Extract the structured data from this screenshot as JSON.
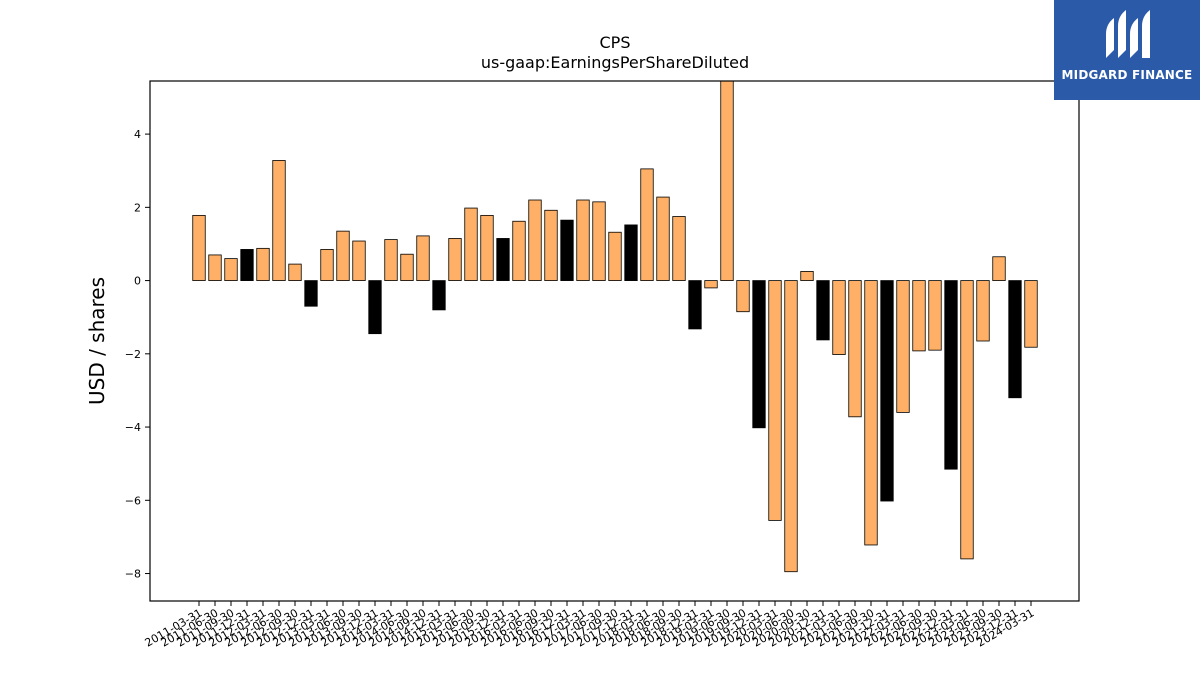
{
  "brand": {
    "name": "MIDGARD FINANCE",
    "bg_color": "#2a5aa8"
  },
  "colors": {
    "bar_positive": "#ffb066",
    "bar_highlight": "#000000",
    "axis": "#000000"
  },
  "chart_data": {
    "type": "bar",
    "title": "CPS",
    "subtitle": "us-gaap:EarningsPerShareDiluted",
    "xlabel": "",
    "ylabel": "USD / shares",
    "ylim": [
      -8.75,
      5.45
    ],
    "yticks": [
      4,
      2,
      0,
      -2,
      -4,
      -6,
      -8
    ],
    "grid": false,
    "legend": "none",
    "categories": [
      "2011-03-31",
      "2011-06-30",
      "2011-09-30",
      "2011-12-31",
      "2012-03-31",
      "2012-06-30",
      "2012-09-30",
      "2012-12-31",
      "2013-03-31",
      "2013-06-30",
      "2013-09-30",
      "2013-12-31",
      "2014-03-31",
      "2014-06-30",
      "2014-09-30",
      "2014-12-31",
      "2015-03-31",
      "2015-06-30",
      "2015-09-30",
      "2015-12-31",
      "2016-03-31",
      "2016-06-30",
      "2016-09-30",
      "2016-12-31",
      "2017-03-31",
      "2017-06-30",
      "2017-09-30",
      "2017-12-31",
      "2018-03-31",
      "2018-06-30",
      "2018-09-30",
      "2018-12-31",
      "2019-03-31",
      "2019-06-30",
      "2019-09-30",
      "2019-12-31",
      "2020-03-31",
      "2020-06-30",
      "2020-09-30",
      "2020-12-31",
      "2021-03-31",
      "2021-06-30",
      "2021-09-30",
      "2021-12-31",
      "2022-03-31",
      "2022-06-30",
      "2022-09-30",
      "2022-12-31",
      "2023-03-31",
      "2023-06-30",
      "2023-09-30",
      "2023-12-31",
      "2024-03-31"
    ],
    "values": [
      1.78,
      0.7,
      0.6,
      0.85,
      0.88,
      3.28,
      0.45,
      -0.7,
      0.85,
      1.35,
      1.08,
      -1.45,
      1.12,
      0.72,
      1.22,
      -0.8,
      1.15,
      1.98,
      1.78,
      1.15,
      1.62,
      2.2,
      1.92,
      1.65,
      2.2,
      2.15,
      1.32,
      1.52,
      3.05,
      2.28,
      1.75,
      -1.32,
      -0.2,
      5.45,
      -0.85,
      -4.02,
      -6.55,
      -7.95,
      0.25,
      -1.62,
      -2.02,
      -3.72,
      -7.22,
      -6.02,
      -3.6,
      -1.92,
      -1.9,
      -5.15,
      -7.6,
      -1.65,
      0.65,
      -3.2,
      -1.82
    ],
    "highlighted": [
      false,
      false,
      false,
      true,
      false,
      false,
      false,
      true,
      false,
      false,
      false,
      true,
      false,
      false,
      false,
      true,
      false,
      false,
      false,
      true,
      false,
      false,
      false,
      true,
      false,
      false,
      false,
      true,
      false,
      false,
      false,
      true,
      false,
      false,
      false,
      true,
      false,
      false,
      false,
      true,
      false,
      false,
      false,
      true,
      false,
      false,
      false,
      true,
      false,
      false,
      false,
      true,
      false
    ]
  }
}
